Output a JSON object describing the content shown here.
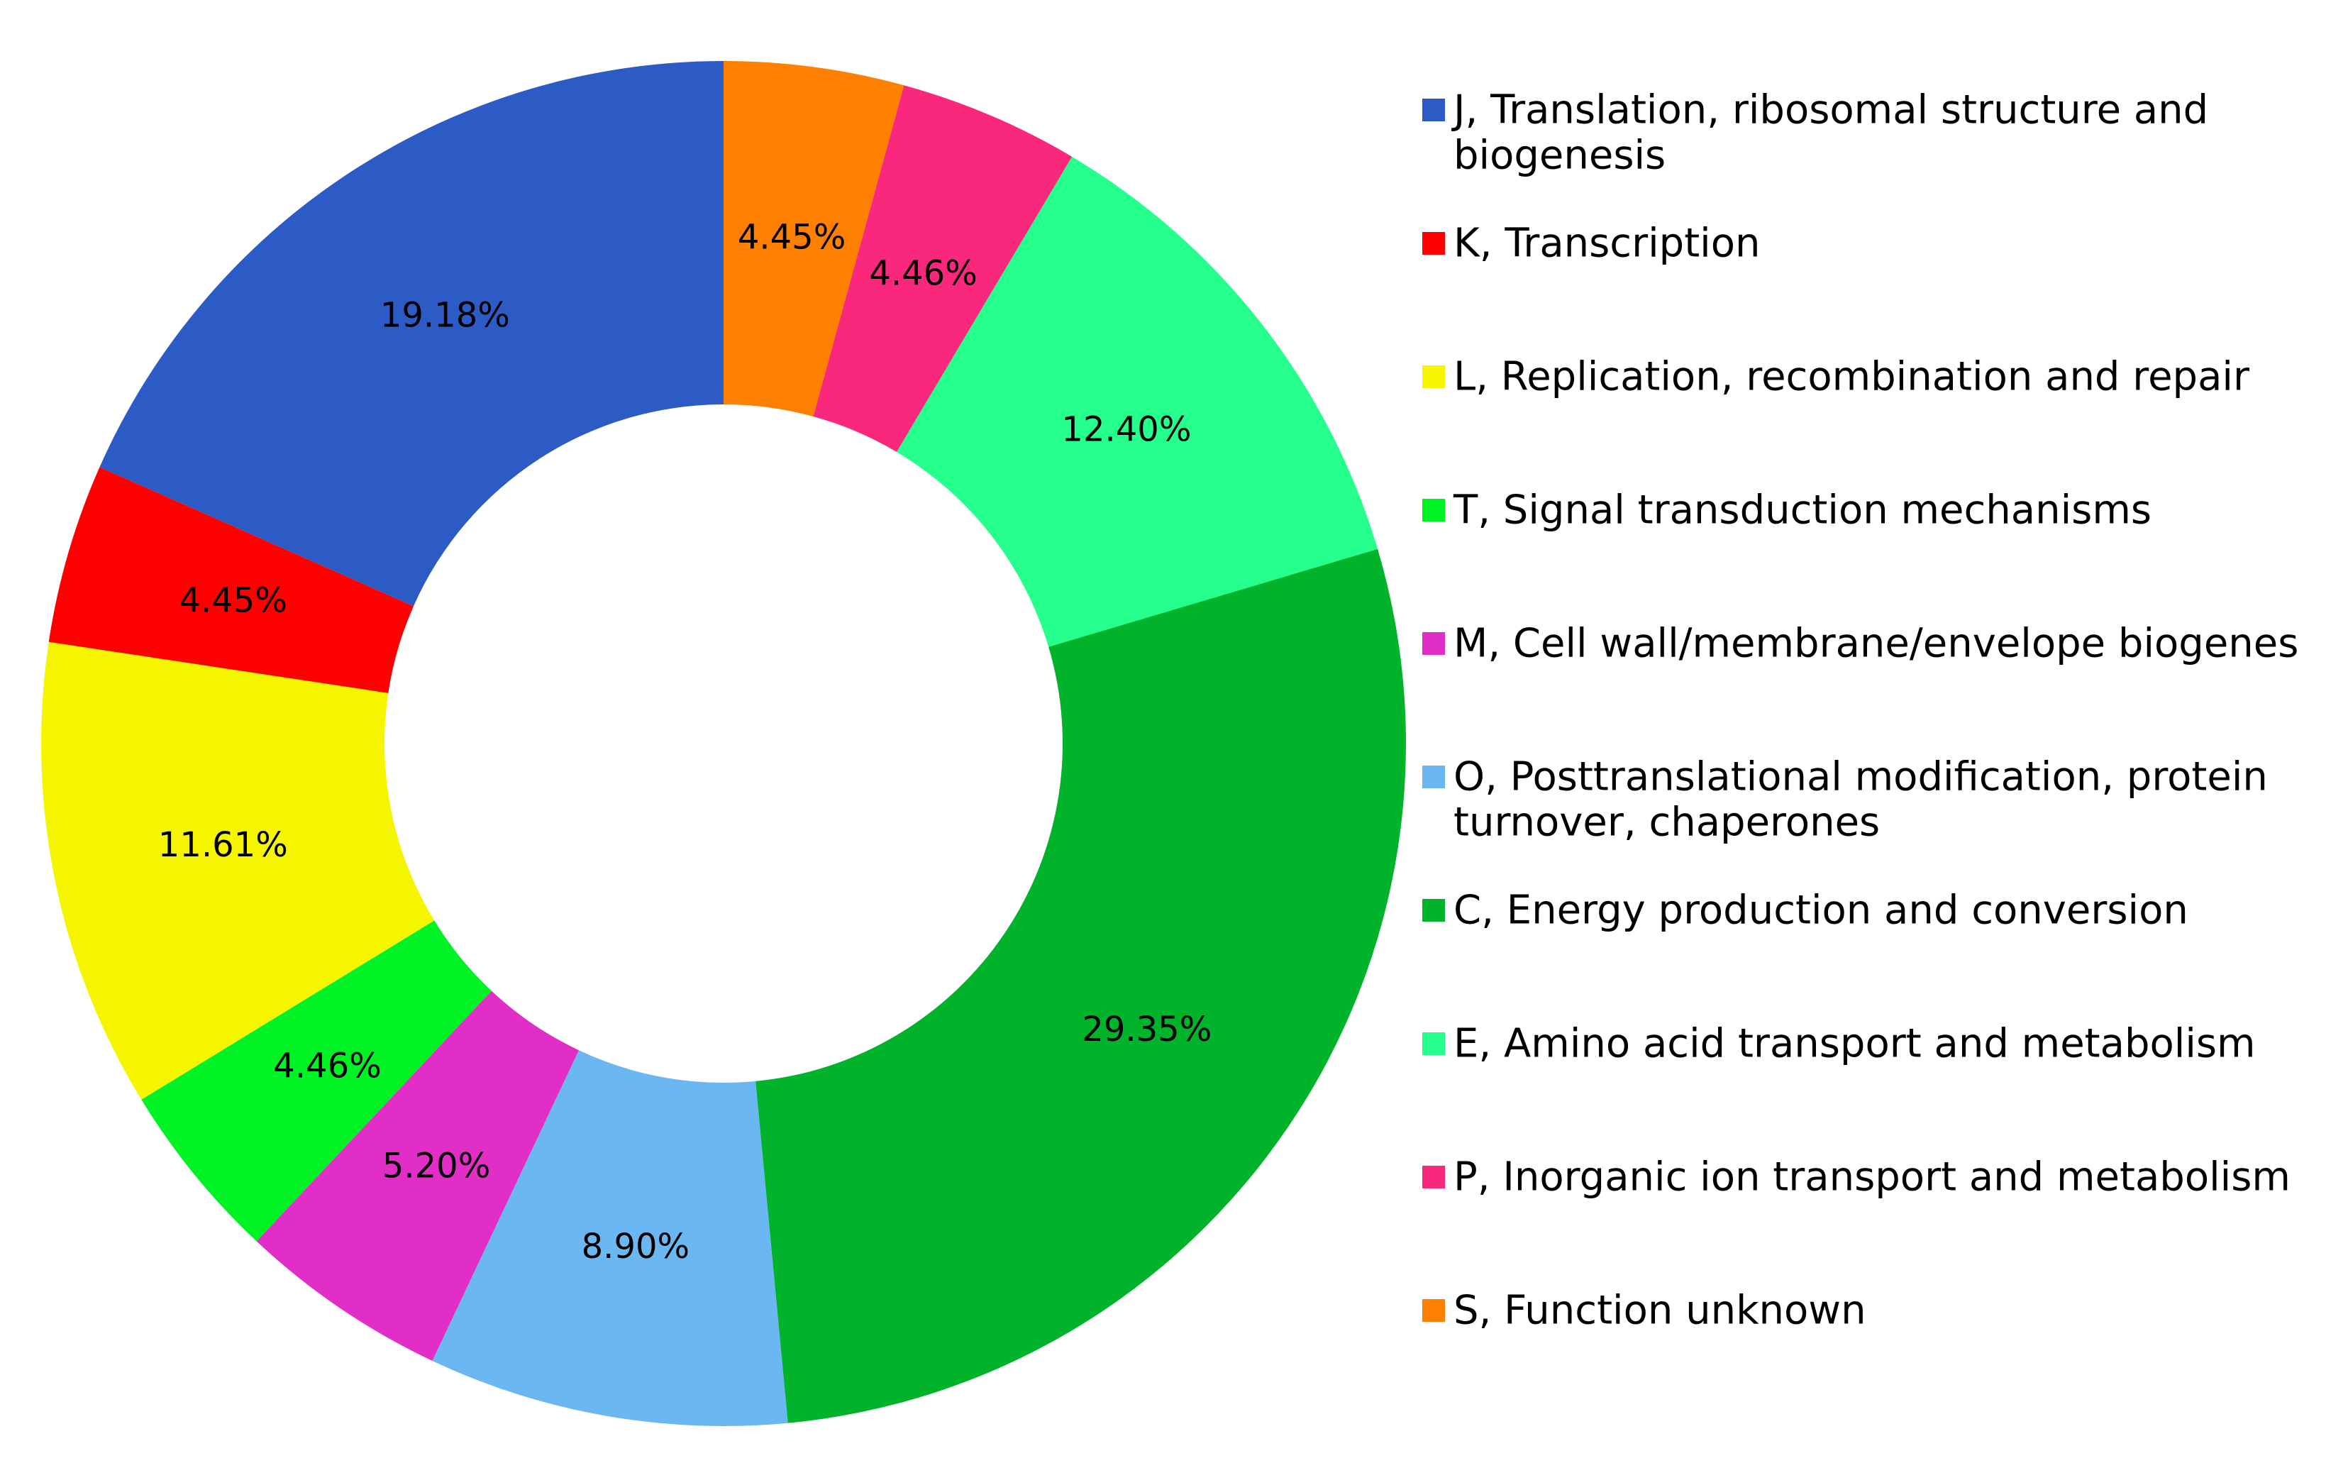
{
  "chart_data": {
    "type": "pie",
    "variant": "donut",
    "title": "",
    "legend_position": "right",
    "slices": [
      {
        "label": "S, Function unknown",
        "value": 4.45,
        "display": "4.45%",
        "color": "#ff7f00",
        "legend_lines": [
          "S, Function unknown"
        ]
      },
      {
        "label": "P, Inorganic ion transport and metabolism",
        "value": 4.46,
        "display": "4.46%",
        "color": "#f9287c",
        "legend_lines": [
          "P, Inorganic ion transport and metabolism"
        ]
      },
      {
        "label": "E, Amino acid transport and metabolism",
        "value": 12.4,
        "display": "12.40%",
        "color": "#25ff8c",
        "legend_lines": [
          "E, Amino acid transport and metabolism"
        ]
      },
      {
        "label": "C, Energy production and conversion",
        "value": 29.35,
        "display": "29.35%",
        "color": "#00b32a",
        "legend_lines": [
          "C, Energy production and conversion"
        ]
      },
      {
        "label": "O, Posttranslational modification, protein turnover, chaperones",
        "value": 8.9,
        "display": "8.90%",
        "color": "#6bb7f1",
        "legend_lines": [
          "O, Posttranslational modification, protein",
          "turnover, chaperones"
        ]
      },
      {
        "label": "M, Cell wall/membrane/envelope biogenes",
        "value": 5.2,
        "display": "5.20%",
        "color": "#e12ec7",
        "legend_lines": [
          "M, Cell wall/membrane/envelope biogenes"
        ]
      },
      {
        "label": "T, Signal transduction mechanisms",
        "value": 4.46,
        "display": "4.46%",
        "color": "#00f224",
        "legend_lines": [
          "T, Signal transduction mechanisms"
        ]
      },
      {
        "label": "L, Replication, recombination and repair",
        "value": 11.61,
        "display": "11.61%",
        "color": "#f5f500",
        "legend_lines": [
          "L, Replication, recombination and repair"
        ]
      },
      {
        "label": "K, Transcription",
        "value": 4.45,
        "display": "4.45%",
        "color": "#ff0000",
        "legend_lines": [
          "K, Transcription"
        ]
      },
      {
        "label": "J, Translation, ribosomal structure and biogenesis",
        "value": 19.18,
        "display": "19.18%",
        "color": "#2c5bc5",
        "legend_lines": [
          "J, Translation, ribosomal structure and",
          "biogenesis"
        ]
      }
    ],
    "legend_order": [
      9,
      8,
      7,
      6,
      5,
      4,
      3,
      2,
      1,
      0
    ]
  }
}
